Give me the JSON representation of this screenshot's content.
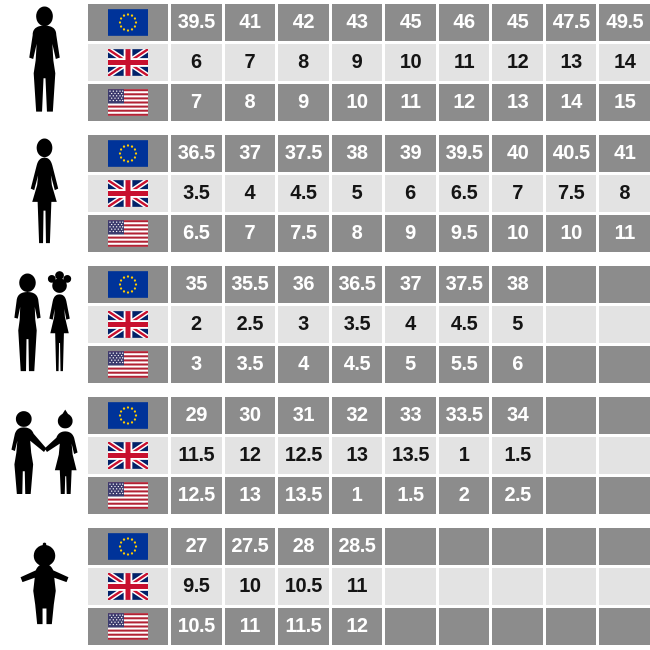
{
  "palette": {
    "cell_dark": "#8c8c8c",
    "cell_light": "#e3e3e3",
    "text_on_dark": "#ffffff",
    "text_on_light": "#141414",
    "background": "#ffffff",
    "silhouette_black": "#000000",
    "eu_flag_blue": "#003399",
    "eu_flag_star_yellow": "#ffcc00",
    "uk_flag_blue": "#012169",
    "uk_flag_red": "#c8102e",
    "us_flag_canton_blue": "#3c3b6e",
    "us_flag_stripe_red": "#b22234"
  },
  "chart_data": {
    "type": "table",
    "description_of_columns": "flag header column followed by 9 size columns; empty strings are blank gray cells",
    "regions_per_group": [
      "EU",
      "UK",
      "US"
    ],
    "groups": [
      {
        "figure": "man-silhouette-icon",
        "rows": [
          {
            "region": "EU",
            "flag": "eu-flag-icon",
            "values": [
              "39.5",
              "41",
              "42",
              "43",
              "45",
              "46",
              "45",
              "47.5",
              "49.5"
            ]
          },
          {
            "region": "UK",
            "flag": "uk-flag-icon",
            "values": [
              "6",
              "7",
              "8",
              "9",
              "10",
              "11",
              "12",
              "13",
              "14"
            ]
          },
          {
            "region": "US",
            "flag": "us-flag-icon",
            "values": [
              "7",
              "8",
              "9",
              "10",
              "11",
              "12",
              "13",
              "14",
              "15"
            ]
          }
        ]
      },
      {
        "figure": "woman-silhouette-icon",
        "rows": [
          {
            "region": "EU",
            "flag": "eu-flag-icon",
            "values": [
              "36.5",
              "37",
              "37.5",
              "38",
              "39",
              "39.5",
              "40",
              "40.5",
              "41"
            ]
          },
          {
            "region": "UK",
            "flag": "uk-flag-icon",
            "values": [
              "3.5",
              "4",
              "4.5",
              "5",
              "6",
              "6.5",
              "7",
              "7.5",
              "8"
            ]
          },
          {
            "region": "US",
            "flag": "us-flag-icon",
            "values": [
              "6.5",
              "7",
              "7.5",
              "8",
              "9",
              "9.5",
              "10",
              "10",
              "11"
            ]
          }
        ]
      },
      {
        "figure": "kids-silhouette-icon",
        "rows": [
          {
            "region": "EU",
            "flag": "eu-flag-icon",
            "values": [
              "35",
              "35.5",
              "36",
              "36.5",
              "37",
              "37.5",
              "38",
              "",
              ""
            ]
          },
          {
            "region": "UK",
            "flag": "uk-flag-icon",
            "values": [
              "2",
              "2.5",
              "3",
              "3.5",
              "4",
              "4.5",
              "5",
              "",
              ""
            ]
          },
          {
            "region": "US",
            "flag": "us-flag-icon",
            "values": [
              "3",
              "3.5",
              "4",
              "4.5",
              "5",
              "5.5",
              "6",
              "",
              ""
            ]
          }
        ]
      },
      {
        "figure": "toddlers-holding-hands-silhouette-icon",
        "rows": [
          {
            "region": "EU",
            "flag": "eu-flag-icon",
            "values": [
              "29",
              "30",
              "31",
              "32",
              "33",
              "33.5",
              "34",
              "",
              ""
            ]
          },
          {
            "region": "UK",
            "flag": "uk-flag-icon",
            "values": [
              "11.5",
              "12",
              "12.5",
              "13",
              "13.5",
              "1",
              "1.5",
              "",
              ""
            ]
          },
          {
            "region": "US",
            "flag": "us-flag-icon",
            "values": [
              "12.5",
              "13",
              "13.5",
              "1",
              "1.5",
              "2",
              "2.5",
              "",
              ""
            ]
          }
        ]
      },
      {
        "figure": "baby-silhouette-icon",
        "rows": [
          {
            "region": "EU",
            "flag": "eu-flag-icon",
            "values": [
              "27",
              "27.5",
              "28",
              "28.5",
              "",
              "",
              "",
              "",
              ""
            ]
          },
          {
            "region": "UK",
            "flag": "uk-flag-icon",
            "values": [
              "9.5",
              "10",
              "10.5",
              "11",
              "",
              "",
              "",
              "",
              ""
            ]
          },
          {
            "region": "US",
            "flag": "us-flag-icon",
            "values": [
              "10.5",
              "11",
              "11.5",
              "12",
              "",
              "",
              "",
              "",
              ""
            ]
          }
        ]
      }
    ]
  }
}
